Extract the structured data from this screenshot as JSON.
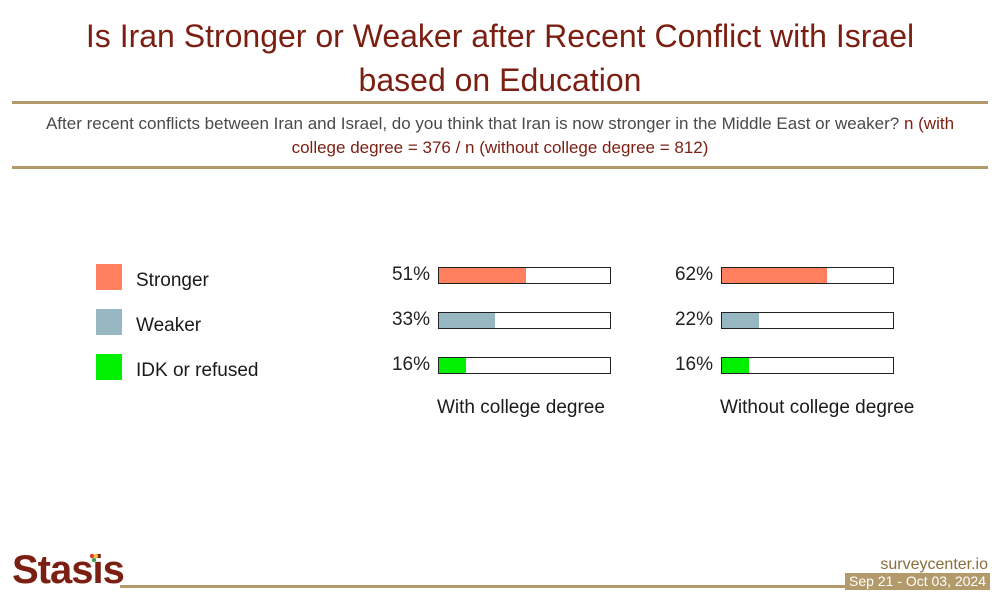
{
  "header": {
    "title_line1": "Is Iran Stronger or Weaker after Recent Conflict with Israel",
    "title_line2": "based on Education",
    "question": "After recent conflicts between Iran and Israel, do you think that Iran is now stronger in the Middle East or weaker?",
    "sample_note": "n (with college degree = 376 / n (without college degree = 812)"
  },
  "colors": {
    "stronger": "#ff7f5e",
    "weaker": "#97b8c2",
    "idk": "#00f000",
    "title": "#7a1f12",
    "rule": "#b39a6a"
  },
  "legend": [
    {
      "label": "Stronger",
      "color_key": "stronger"
    },
    {
      "label": "Weaker",
      "color_key": "weaker"
    },
    {
      "label": "IDK or refused",
      "color_key": "idk"
    }
  ],
  "chart_data": {
    "type": "bar",
    "orientation": "horizontal",
    "categories": [
      "Stronger",
      "Weaker",
      "IDK or refused"
    ],
    "series": [
      {
        "name": "With college degree",
        "values": [
          51,
          33,
          16
        ],
        "labels": [
          "51%",
          "33%",
          "16%"
        ]
      },
      {
        "name": "Without college degree",
        "values": [
          62,
          22,
          16
        ],
        "labels": [
          "62%",
          "22%",
          "16%"
        ]
      }
    ],
    "unit": "%",
    "xlim": [
      0,
      100
    ]
  },
  "footer": {
    "logo": "Stasis",
    "site": "surveycenter.io",
    "date_range": "Sep 21 - Oct 03, 2024"
  }
}
